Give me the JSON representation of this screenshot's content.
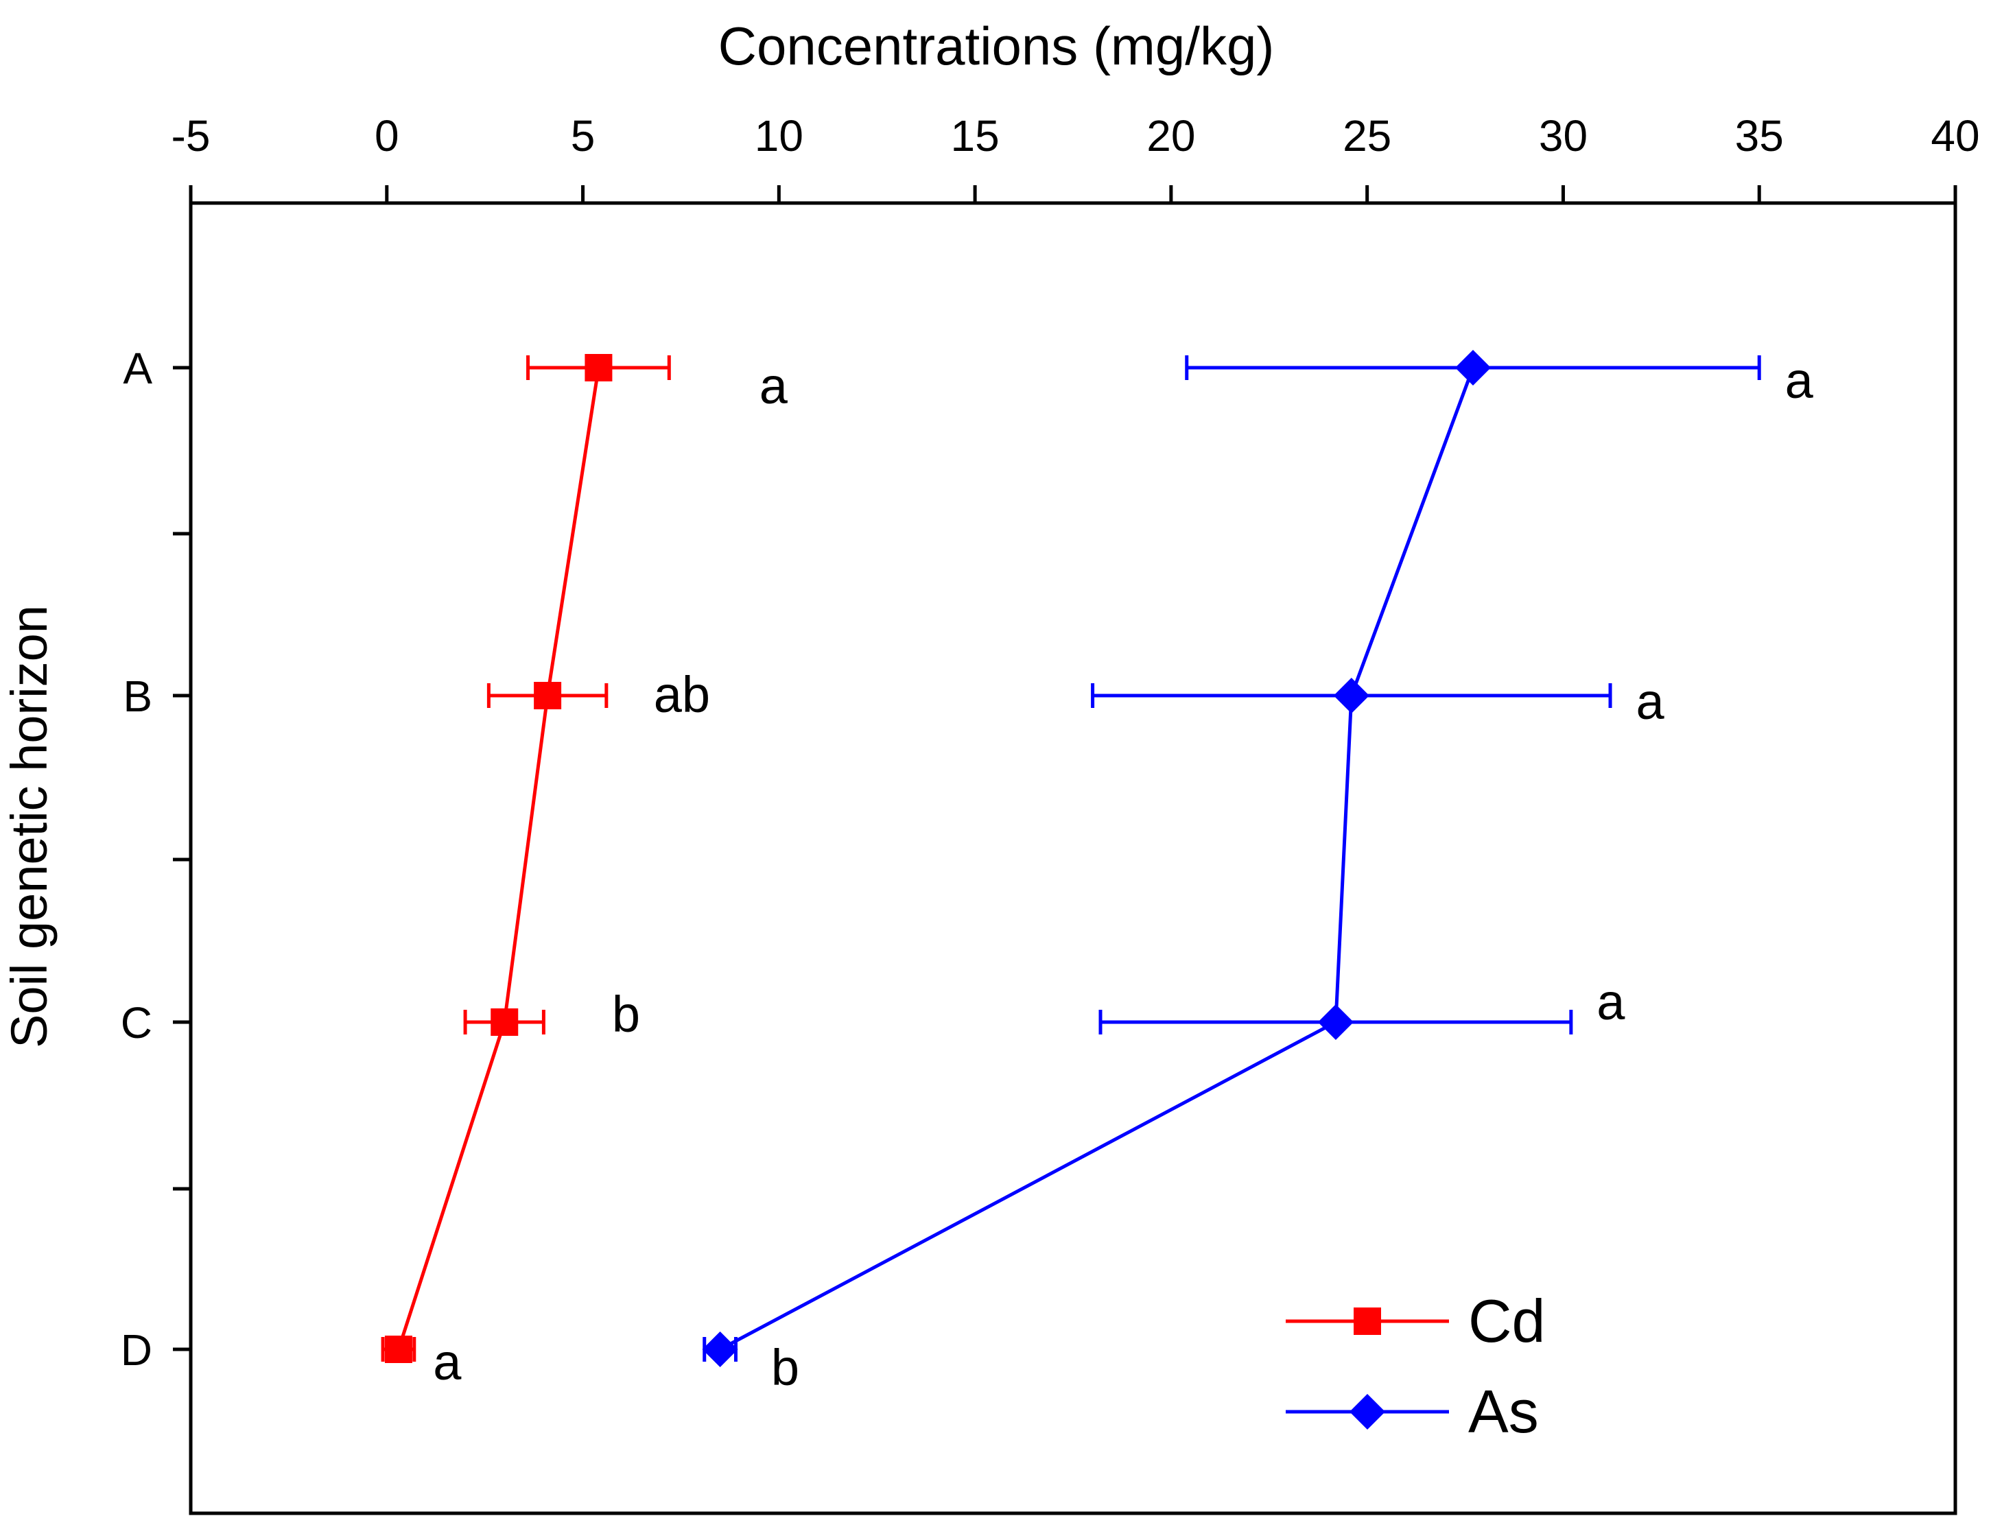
{
  "chart_data": {
    "type": "line",
    "orientation": "horizontal-profile",
    "xlabel": "Concentrations (mg/kg)",
    "ylabel": "Soil genetic horizon",
    "xlim": [
      -5,
      40
    ],
    "xticks": [
      -5,
      0,
      5,
      10,
      15,
      20,
      25,
      30,
      35,
      40
    ],
    "x_axis_position": "top",
    "categories": [
      "A",
      "B",
      "C",
      "D"
    ],
    "legend_position": "bottom-right",
    "series": [
      {
        "name": "Cd",
        "color": "#ff0000",
        "marker": "square",
        "values": [
          5.4,
          4.1,
          3.0,
          0.3
        ],
        "error": [
          1.8,
          1.5,
          1.0,
          0.4
        ],
        "labels": [
          "a",
          "ab",
          "b",
          "a"
        ]
      },
      {
        "name": "As",
        "color": "#0000ff",
        "marker": "diamond",
        "values": [
          27.7,
          24.6,
          24.2,
          8.5
        ],
        "error": [
          7.3,
          6.6,
          6.0,
          0.4
        ],
        "labels": [
          "a",
          "a",
          "a",
          "b"
        ]
      }
    ]
  }
}
